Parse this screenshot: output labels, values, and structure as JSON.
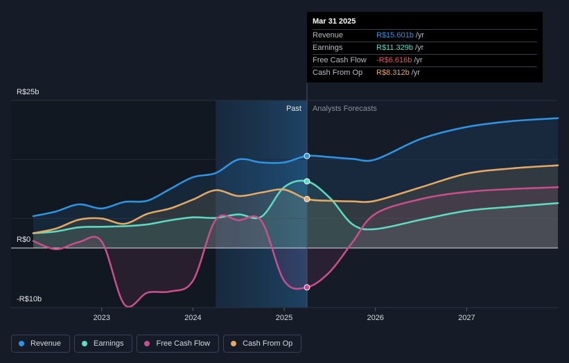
{
  "chart_data": {
    "type": "line",
    "title": "",
    "y_ticks": [
      {
        "value": 25,
        "label": "R$25b"
      },
      {
        "value": 0,
        "label": "R$0"
      },
      {
        "value": -10,
        "label": "-R$10b"
      }
    ],
    "ylim": [
      -10,
      25
    ],
    "xlim": [
      2022.25,
      2028.0
    ],
    "x_ticks": [
      {
        "value": 2023,
        "label": "2023"
      },
      {
        "value": 2024,
        "label": "2024"
      },
      {
        "value": 2025,
        "label": "2025"
      },
      {
        "value": 2026,
        "label": "2026"
      },
      {
        "value": 2027,
        "label": "2027"
      }
    ],
    "past_label": "Past",
    "forecast_label": "Analysts Forecasts",
    "divider_x": 2025.25,
    "shade_start_x": 2024.25,
    "series": [
      {
        "name": "Revenue",
        "color": "#2f93e0",
        "points": [
          [
            2022.25,
            5.4
          ],
          [
            2022.5,
            6.2
          ],
          [
            2022.75,
            7.4
          ],
          [
            2023.0,
            6.7
          ],
          [
            2023.25,
            7.8
          ],
          [
            2023.5,
            8.0
          ],
          [
            2023.75,
            10.0
          ],
          [
            2024.0,
            12.0
          ],
          [
            2024.25,
            12.7
          ],
          [
            2024.5,
            15.0
          ],
          [
            2024.75,
            14.5
          ],
          [
            2025.0,
            14.5
          ],
          [
            2025.25,
            15.6
          ],
          [
            2025.5,
            15.4
          ],
          [
            2025.75,
            15.1
          ],
          [
            2026.0,
            15.0
          ],
          [
            2026.5,
            18.5
          ],
          [
            2027.0,
            20.5
          ],
          [
            2027.5,
            21.5
          ],
          [
            2028.0,
            22.0
          ]
        ]
      },
      {
        "name": "Earnings",
        "color": "#5ed9c2",
        "points": [
          [
            2022.25,
            2.5
          ],
          [
            2022.5,
            2.8
          ],
          [
            2022.75,
            3.5
          ],
          [
            2023.0,
            3.6
          ],
          [
            2023.25,
            3.7
          ],
          [
            2023.5,
            4.0
          ],
          [
            2023.75,
            4.7
          ],
          [
            2024.0,
            5.2
          ],
          [
            2024.25,
            5.1
          ],
          [
            2024.5,
            5.7
          ],
          [
            2024.75,
            5.3
          ],
          [
            2025.0,
            10.3
          ],
          [
            2025.25,
            11.3
          ],
          [
            2025.5,
            8.5
          ],
          [
            2025.75,
            4.0
          ],
          [
            2026.0,
            3.2
          ],
          [
            2026.5,
            4.8
          ],
          [
            2027.0,
            6.3
          ],
          [
            2027.5,
            7.0
          ],
          [
            2028.0,
            7.6
          ]
        ]
      },
      {
        "name": "Free Cash Flow",
        "color": "#c94e8c",
        "points": [
          [
            2022.25,
            1.2
          ],
          [
            2022.5,
            -0.2
          ],
          [
            2022.75,
            1.0
          ],
          [
            2023.0,
            1.1
          ],
          [
            2023.25,
            -9.5
          ],
          [
            2023.5,
            -7.5
          ],
          [
            2023.75,
            -7.3
          ],
          [
            2024.0,
            -5.5
          ],
          [
            2024.25,
            4.8
          ],
          [
            2024.5,
            4.7
          ],
          [
            2024.75,
            4.6
          ],
          [
            2025.0,
            -5.5
          ],
          [
            2025.25,
            -6.6
          ],
          [
            2025.5,
            -4.0
          ],
          [
            2025.75,
            1.0
          ],
          [
            2026.0,
            5.8
          ],
          [
            2026.5,
            8.3
          ],
          [
            2027.0,
            9.5
          ],
          [
            2027.5,
            10.0
          ],
          [
            2028.0,
            10.3
          ]
        ]
      },
      {
        "name": "Cash From Op",
        "color": "#e4a965",
        "points": [
          [
            2022.25,
            2.5
          ],
          [
            2022.5,
            3.3
          ],
          [
            2022.75,
            4.8
          ],
          [
            2023.0,
            5.0
          ],
          [
            2023.25,
            4.1
          ],
          [
            2023.5,
            5.8
          ],
          [
            2023.75,
            6.7
          ],
          [
            2024.0,
            8.2
          ],
          [
            2024.25,
            9.8
          ],
          [
            2024.5,
            8.8
          ],
          [
            2024.75,
            9.4
          ],
          [
            2025.0,
            9.9
          ],
          [
            2025.25,
            8.3
          ],
          [
            2025.5,
            8.0
          ],
          [
            2025.75,
            7.9
          ],
          [
            2026.0,
            8.0
          ],
          [
            2026.5,
            10.3
          ],
          [
            2027.0,
            12.6
          ],
          [
            2027.5,
            13.5
          ],
          [
            2028.0,
            14.0
          ]
        ]
      }
    ]
  },
  "tooltip": {
    "date": "Mar 31 2025",
    "rows": [
      {
        "label": "Revenue",
        "value": "R$15.601b",
        "unit": "/yr",
        "color": "#2f93e0"
      },
      {
        "label": "Earnings",
        "value": "R$11.329b",
        "unit": "/yr",
        "color": "#5ed9c2"
      },
      {
        "label": "Free Cash Flow",
        "value": "-R$6.616b",
        "unit": "/yr",
        "color": "#f0525b"
      },
      {
        "label": "Cash From Op",
        "value": "R$8.312b",
        "unit": "/yr",
        "color": "#e4a965"
      }
    ]
  },
  "legend": [
    {
      "label": "Revenue",
      "color": "#2f93e0"
    },
    {
      "label": "Earnings",
      "color": "#5ed9c2"
    },
    {
      "label": "Free Cash Flow",
      "color": "#c94e8c"
    },
    {
      "label": "Cash From Op",
      "color": "#e4a965"
    }
  ]
}
